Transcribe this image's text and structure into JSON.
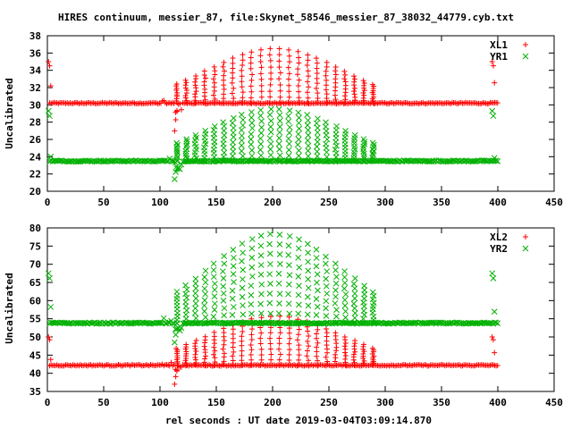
{
  "chart_data": [
    {
      "type": "scatter",
      "title": "HIRES continuum, messier_87, file:Skynet_58546_messier_87_38032_44779.cyb.txt",
      "ylabel": "Uncalibrated",
      "xlabel": "",
      "xlim": [
        0,
        450
      ],
      "ylim": [
        20,
        38
      ],
      "xticks": [
        0,
        50,
        100,
        150,
        200,
        250,
        300,
        350,
        400,
        450
      ],
      "yticks": [
        20,
        22,
        24,
        26,
        28,
        30,
        32,
        34,
        36,
        38
      ],
      "legend": "top-right",
      "grid": false,
      "series": [
        {
          "name": "XL1",
          "marker": "plus",
          "color": "#ff0000",
          "baseline": 30.2,
          "peak_center": 202,
          "peak_amplitude": 6.3,
          "peak_width": 60,
          "scan_start": 115,
          "scan_end": 290,
          "scan_period": 8.3,
          "dip_x": 113,
          "dip_value": 27.0,
          "edge_x": [
            1,
            395
          ],
          "edge_value": 35.0
        },
        {
          "name": "YR1",
          "marker": "cross",
          "color": "#00b000",
          "baseline": 23.5,
          "peak_center": 202,
          "peak_amplitude": 6.0,
          "peak_width": 60,
          "scan_start": 115,
          "scan_end": 290,
          "scan_period": 8.3,
          "dip_x": 113,
          "dip_value": 21.4,
          "edge_x": [
            1,
            395
          ],
          "edge_value": 29.3
        }
      ]
    },
    {
      "type": "scatter",
      "title": "",
      "ylabel": "Uncalibrated",
      "xlabel": "rel seconds : UT date 2019-03-04T03:09:14.870",
      "xlim": [
        0,
        450
      ],
      "ylim": [
        35,
        80
      ],
      "xticks": [
        0,
        50,
        100,
        150,
        200,
        250,
        300,
        350,
        400,
        450
      ],
      "yticks": [
        35,
        40,
        45,
        50,
        55,
        60,
        65,
        70,
        75,
        80
      ],
      "legend": "top-right",
      "grid": false,
      "series": [
        {
          "name": "XL2",
          "marker": "plus",
          "color": "#ff0000",
          "baseline": 42.2,
          "peak_center": 202,
          "peak_amplitude": 13.5,
          "peak_width": 60,
          "scan_start": 115,
          "scan_end": 290,
          "scan_period": 8.3,
          "dip_x": 113,
          "dip_value": 37.0,
          "edge_x": [
            1,
            395
          ],
          "edge_value": 50.0
        },
        {
          "name": "YR2",
          "marker": "cross",
          "color": "#00b000",
          "baseline": 53.8,
          "peak_center": 202,
          "peak_amplitude": 24.5,
          "peak_width": 60,
          "scan_start": 115,
          "scan_end": 290,
          "scan_period": 8.3,
          "dip_x": 113,
          "dip_value": 48.5,
          "edge_x": [
            1,
            395
          ],
          "edge_value": 67.5
        }
      ]
    }
  ]
}
